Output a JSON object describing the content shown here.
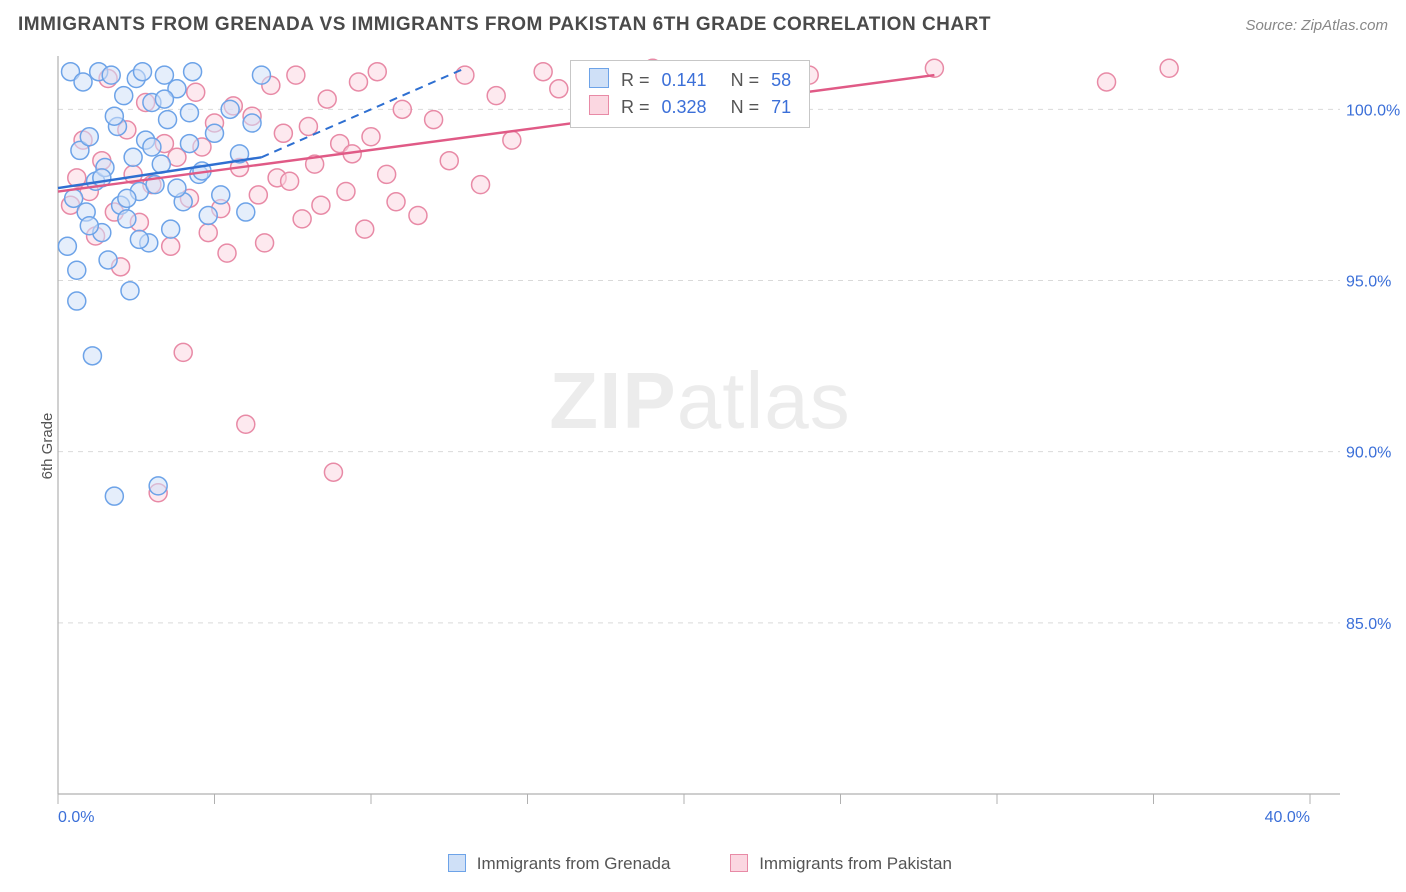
{
  "title": "IMMIGRANTS FROM GRENADA VS IMMIGRANTS FROM PAKISTAN 6TH GRADE CORRELATION CHART",
  "source_label": "Source: ZipAtlas.com",
  "ylabel": "6th Grade",
  "watermark_zip": "ZIP",
  "watermark_atlas": "atlas",
  "series_a_name": "Immigrants from Grenada",
  "series_b_name": "Immigrants from Pakistan",
  "colors": {
    "series_a_fill": "#cfe0f7",
    "series_a_stroke": "#6da3e8",
    "series_a_line": "#2e6fd1",
    "series_b_fill": "#fbd7e1",
    "series_b_stroke": "#e88aa6",
    "series_b_line": "#e05a86",
    "grid": "#d9d9d9",
    "axis": "#b0b0b0",
    "tick_text": "#3b6fd8",
    "title_text": "#4a4a4a",
    "source_text": "#888888"
  },
  "axes": {
    "x_min": 0.0,
    "x_max": 40.0,
    "y_min": 80.0,
    "y_max": 101.5,
    "y_ticks": [
      85.0,
      90.0,
      95.0,
      100.0
    ],
    "y_tick_labels": [
      "85.0%",
      "90.0%",
      "95.0%",
      "100.0%"
    ],
    "x_ticks_minor_step": 5.0,
    "x_tick_labels": {
      "0": "0.0%",
      "40": "40.0%"
    }
  },
  "legend": {
    "rows": [
      {
        "swatch": "a",
        "r_label": "R =",
        "r_value": "0.141",
        "n_label": "N =",
        "n_value": "58"
      },
      {
        "swatch": "b",
        "r_label": "R =",
        "r_value": "0.328",
        "n_label": "N =",
        "n_value": "71"
      }
    ]
  },
  "trend_lines": {
    "a_solid": {
      "x1": 0.0,
      "y1": 97.7,
      "x2": 6.5,
      "y2": 98.6
    },
    "a_dashed": {
      "x1": 6.5,
      "y1": 98.6,
      "x2": 13.0,
      "y2": 101.2
    },
    "b_solid": {
      "x1": 0.0,
      "y1": 97.6,
      "x2": 28.0,
      "y2": 101.0
    }
  },
  "marker_radius": 9,
  "series_a_points": [
    [
      0.3,
      96.0
    ],
    [
      0.4,
      101.1
    ],
    [
      0.5,
      97.4
    ],
    [
      0.6,
      95.3
    ],
    [
      0.7,
      98.8
    ],
    [
      0.8,
      100.8
    ],
    [
      0.9,
      97.0
    ],
    [
      1.0,
      99.2
    ],
    [
      1.1,
      92.8
    ],
    [
      1.2,
      97.9
    ],
    [
      1.3,
      101.1
    ],
    [
      1.4,
      96.4
    ],
    [
      1.5,
      98.3
    ],
    [
      1.6,
      95.6
    ],
    [
      1.7,
      101.0
    ],
    [
      1.8,
      88.7
    ],
    [
      1.9,
      99.5
    ],
    [
      2.0,
      97.2
    ],
    [
      2.1,
      100.4
    ],
    [
      2.2,
      96.8
    ],
    [
      2.3,
      94.7
    ],
    [
      2.4,
      98.6
    ],
    [
      2.5,
      100.9
    ],
    [
      2.6,
      97.6
    ],
    [
      2.7,
      101.1
    ],
    [
      2.8,
      99.1
    ],
    [
      2.9,
      96.1
    ],
    [
      3.0,
      100.2
    ],
    [
      3.1,
      97.8
    ],
    [
      3.2,
      89.0
    ],
    [
      3.3,
      98.4
    ],
    [
      3.4,
      101.0
    ],
    [
      3.5,
      99.7
    ],
    [
      3.6,
      96.5
    ],
    [
      3.8,
      100.6
    ],
    [
      4.0,
      97.3
    ],
    [
      4.2,
      99.9
    ],
    [
      4.3,
      101.1
    ],
    [
      4.5,
      98.1
    ],
    [
      4.8,
      96.9
    ],
    [
      5.0,
      99.3
    ],
    [
      5.2,
      97.5
    ],
    [
      5.5,
      100.0
    ],
    [
      5.8,
      98.7
    ],
    [
      6.0,
      97.0
    ],
    [
      6.2,
      99.6
    ],
    [
      6.5,
      101.0
    ],
    [
      0.6,
      94.4
    ],
    [
      1.0,
      96.6
    ],
    [
      1.4,
      98.0
    ],
    [
      1.8,
      99.8
    ],
    [
      2.2,
      97.4
    ],
    [
      2.6,
      96.2
    ],
    [
      3.0,
      98.9
    ],
    [
      3.4,
      100.3
    ],
    [
      3.8,
      97.7
    ],
    [
      4.2,
      99.0
    ],
    [
      4.6,
      98.2
    ]
  ],
  "series_b_points": [
    [
      0.4,
      97.2
    ],
    [
      0.6,
      98.0
    ],
    [
      0.8,
      99.1
    ],
    [
      1.0,
      97.6
    ],
    [
      1.2,
      96.3
    ],
    [
      1.4,
      98.5
    ],
    [
      1.6,
      100.9
    ],
    [
      1.8,
      97.0
    ],
    [
      2.0,
      95.4
    ],
    [
      2.2,
      99.4
    ],
    [
      2.4,
      98.1
    ],
    [
      2.6,
      96.7
    ],
    [
      2.8,
      100.2
    ],
    [
      3.0,
      97.8
    ],
    [
      3.2,
      88.8
    ],
    [
      3.4,
      99.0
    ],
    [
      3.6,
      96.0
    ],
    [
      3.8,
      98.6
    ],
    [
      4.0,
      92.9
    ],
    [
      4.2,
      97.4
    ],
    [
      4.4,
      100.5
    ],
    [
      4.6,
      98.9
    ],
    [
      4.8,
      96.4
    ],
    [
      5.0,
      99.6
    ],
    [
      5.2,
      97.1
    ],
    [
      5.4,
      95.8
    ],
    [
      5.6,
      100.1
    ],
    [
      5.8,
      98.3
    ],
    [
      6.0,
      90.8
    ],
    [
      6.2,
      99.8
    ],
    [
      6.4,
      97.5
    ],
    [
      6.6,
      96.1
    ],
    [
      6.8,
      100.7
    ],
    [
      7.0,
      98.0
    ],
    [
      7.2,
      99.3
    ],
    [
      7.4,
      97.9
    ],
    [
      7.6,
      101.0
    ],
    [
      7.8,
      96.8
    ],
    [
      8.0,
      99.5
    ],
    [
      8.2,
      98.4
    ],
    [
      8.4,
      97.2
    ],
    [
      8.6,
      100.3
    ],
    [
      8.8,
      89.4
    ],
    [
      9.0,
      99.0
    ],
    [
      9.2,
      97.6
    ],
    [
      9.4,
      98.7
    ],
    [
      9.6,
      100.8
    ],
    [
      9.8,
      96.5
    ],
    [
      10.0,
      99.2
    ],
    [
      10.2,
      101.1
    ],
    [
      10.5,
      98.1
    ],
    [
      10.8,
      97.3
    ],
    [
      11.0,
      100.0
    ],
    [
      11.5,
      96.9
    ],
    [
      12.0,
      99.7
    ],
    [
      12.5,
      98.5
    ],
    [
      13.0,
      101.0
    ],
    [
      13.5,
      97.8
    ],
    [
      14.0,
      100.4
    ],
    [
      14.5,
      99.1
    ],
    [
      15.5,
      101.1
    ],
    [
      16.0,
      100.6
    ],
    [
      17.0,
      100.9
    ],
    [
      19.0,
      101.2
    ],
    [
      19.5,
      100.3
    ],
    [
      20.0,
      101.1
    ],
    [
      21.0,
      100.7
    ],
    [
      24.0,
      101.0
    ],
    [
      28.0,
      101.2
    ],
    [
      33.5,
      100.8
    ],
    [
      35.5,
      101.2
    ]
  ]
}
